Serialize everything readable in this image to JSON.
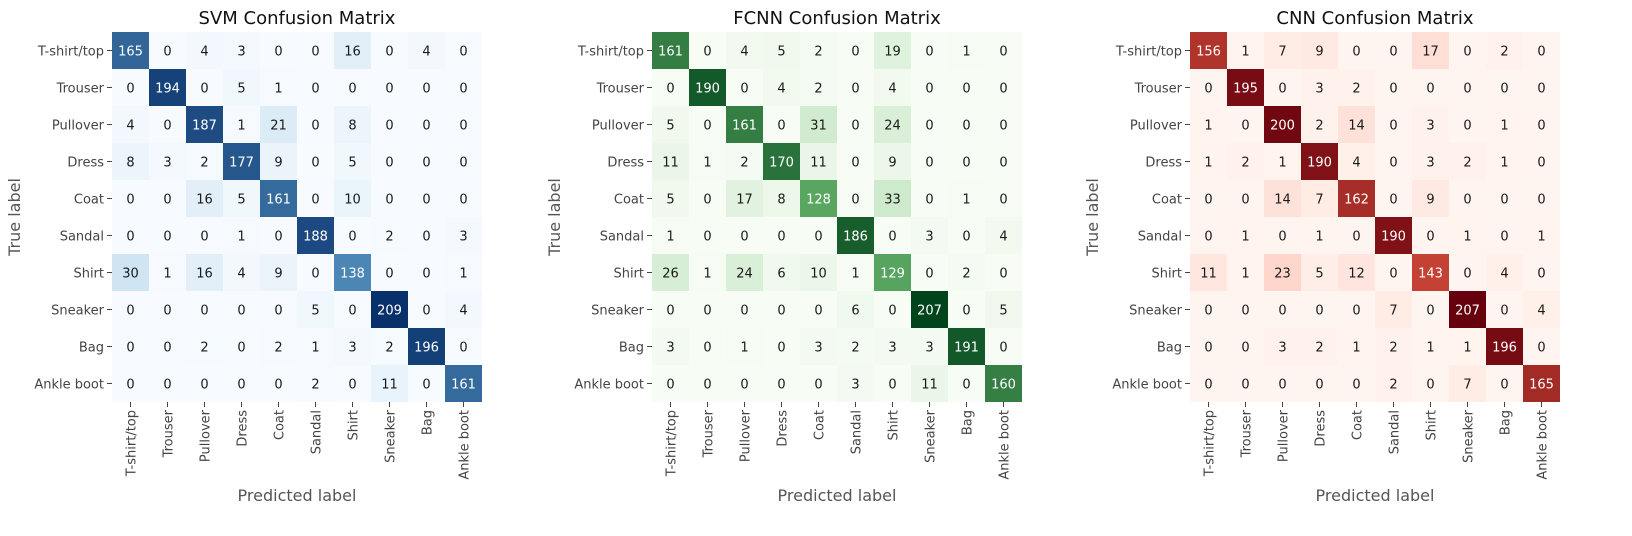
{
  "chart_data": [
    {
      "type": "heatmap",
      "title": "SVM Confusion Matrix",
      "xlabel": "Predicted label",
      "ylabel": "True label",
      "colormap": "Blues",
      "colors": {
        "low": "#f7fbff",
        "mid": "#6baed6",
        "high": "#08306b"
      },
      "vmax": 209,
      "categories": [
        "T-shirt/top",
        "Trouser",
        "Pullover",
        "Dress",
        "Coat",
        "Sandal",
        "Shirt",
        "Sneaker",
        "Bag",
        "Ankle boot"
      ],
      "matrix": [
        [
          165,
          0,
          4,
          3,
          0,
          0,
          16,
          0,
          4,
          0
        ],
        [
          0,
          194,
          0,
          5,
          1,
          0,
          0,
          0,
          0,
          0
        ],
        [
          4,
          0,
          187,
          1,
          21,
          0,
          8,
          0,
          0,
          0
        ],
        [
          8,
          3,
          2,
          177,
          9,
          0,
          5,
          0,
          0,
          0
        ],
        [
          0,
          0,
          16,
          5,
          161,
          0,
          10,
          0,
          0,
          0
        ],
        [
          0,
          0,
          0,
          1,
          0,
          188,
          0,
          2,
          0,
          3
        ],
        [
          30,
          1,
          16,
          4,
          9,
          0,
          138,
          0,
          0,
          1
        ],
        [
          0,
          0,
          0,
          0,
          0,
          5,
          0,
          209,
          0,
          4
        ],
        [
          0,
          0,
          2,
          0,
          2,
          1,
          3,
          2,
          196,
          0
        ],
        [
          0,
          0,
          0,
          0,
          0,
          2,
          0,
          11,
          0,
          161
        ]
      ]
    },
    {
      "type": "heatmap",
      "title": "FCNN Confusion Matrix",
      "xlabel": "Predicted label",
      "ylabel": "True label",
      "colormap": "Greens",
      "colors": {
        "low": "#f7fcf5",
        "mid": "#74c476",
        "high": "#00441b"
      },
      "vmax": 207,
      "categories": [
        "T-shirt/top",
        "Trouser",
        "Pullover",
        "Dress",
        "Coat",
        "Sandal",
        "Shirt",
        "Sneaker",
        "Bag",
        "Ankle boot"
      ],
      "matrix": [
        [
          161,
          0,
          4,
          5,
          2,
          0,
          19,
          0,
          1,
          0
        ],
        [
          0,
          190,
          0,
          4,
          2,
          0,
          4,
          0,
          0,
          0
        ],
        [
          5,
          0,
          161,
          0,
          31,
          0,
          24,
          0,
          0,
          0
        ],
        [
          11,
          1,
          2,
          170,
          11,
          0,
          9,
          0,
          0,
          0
        ],
        [
          5,
          0,
          17,
          8,
          128,
          0,
          33,
          0,
          1,
          0
        ],
        [
          1,
          0,
          0,
          0,
          0,
          186,
          0,
          3,
          0,
          4
        ],
        [
          26,
          1,
          24,
          6,
          10,
          1,
          129,
          0,
          2,
          0
        ],
        [
          0,
          0,
          0,
          0,
          0,
          6,
          0,
          207,
          0,
          5
        ],
        [
          3,
          0,
          1,
          0,
          3,
          2,
          3,
          3,
          191,
          0
        ],
        [
          0,
          0,
          0,
          0,
          0,
          3,
          0,
          11,
          0,
          160
        ]
      ]
    },
    {
      "type": "heatmap",
      "title": "CNN Confusion Matrix",
      "xlabel": "Predicted label",
      "ylabel": "True label",
      "colormap": "Reds",
      "colors": {
        "low": "#fff5f0",
        "mid": "#fb6a4a",
        "high": "#67000d"
      },
      "vmax": 207,
      "categories": [
        "T-shirt/top",
        "Trouser",
        "Pullover",
        "Dress",
        "Coat",
        "Sandal",
        "Shirt",
        "Sneaker",
        "Bag",
        "Ankle boot"
      ],
      "matrix": [
        [
          156,
          1,
          7,
          9,
          0,
          0,
          17,
          0,
          2,
          0
        ],
        [
          0,
          195,
          0,
          3,
          2,
          0,
          0,
          0,
          0,
          0
        ],
        [
          1,
          0,
          200,
          2,
          14,
          0,
          3,
          0,
          1,
          0
        ],
        [
          1,
          2,
          1,
          190,
          4,
          0,
          3,
          2,
          1,
          0
        ],
        [
          0,
          0,
          14,
          7,
          162,
          0,
          9,
          0,
          0,
          0
        ],
        [
          0,
          1,
          0,
          1,
          0,
          190,
          0,
          1,
          0,
          1
        ],
        [
          11,
          1,
          23,
          5,
          12,
          0,
          143,
          0,
          4,
          0
        ],
        [
          0,
          0,
          0,
          0,
          0,
          7,
          0,
          207,
          0,
          4
        ],
        [
          0,
          0,
          3,
          2,
          1,
          2,
          1,
          1,
          196,
          0
        ],
        [
          0,
          0,
          0,
          0,
          0,
          2,
          0,
          7,
          0,
          165
        ]
      ]
    }
  ]
}
